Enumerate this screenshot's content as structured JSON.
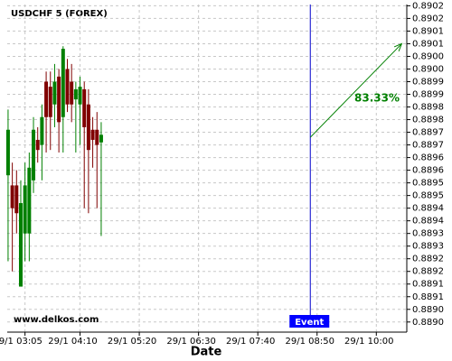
{
  "chart_data": {
    "type": "candlestick",
    "title": "USDCHF 5 (FOREX)",
    "x_label": "Date",
    "watermark": "www.delkos.com",
    "x": [
      165,
      170,
      175,
      180,
      185,
      190,
      195,
      200,
      205,
      210,
      215,
      220,
      225,
      230,
      235,
      240,
      245,
      250,
      255,
      260,
      265,
      270,
      275
    ],
    "open": [
      0.88953,
      0.88949,
      0.88949,
      0.88909,
      0.8893,
      0.8893,
      0.88951,
      0.88967,
      0.88965,
      0.8899,
      0.88988,
      0.88981,
      0.88992,
      0.88976,
      0.88995,
      0.8899,
      0.88983,
      0.88981,
      0.88987,
      0.88981,
      0.88971,
      0.88971,
      0.88966
    ],
    "high": [
      0.88979,
      0.88958,
      0.88955,
      0.88951,
      0.88958,
      0.88962,
      0.88976,
      0.88972,
      0.88981,
      0.88994,
      0.88994,
      0.88997,
      0.88995,
      0.89004,
      0.88999,
      0.88997,
      0.8899,
      0.88992,
      0.8899,
      0.88987,
      0.88976,
      0.88978,
      0.88974
    ],
    "low": [
      0.88919,
      0.88915,
      0.8893,
      0.88909,
      0.88919,
      0.88919,
      0.88946,
      0.88958,
      0.88951,
      0.88962,
      0.88963,
      0.88972,
      0.88962,
      0.88962,
      0.88978,
      0.88974,
      0.88962,
      0.88965,
      0.8894,
      0.88938,
      0.88956,
      0.8894,
      0.88929
    ],
    "close": [
      0.88971,
      0.8894,
      0.88938,
      0.88942,
      0.88949,
      0.88956,
      0.88971,
      0.88963,
      0.88976,
      0.88976,
      0.88976,
      0.8899,
      0.88974,
      0.89003,
      0.88981,
      0.88981,
      0.88987,
      0.88988,
      0.88972,
      0.88963,
      0.88967,
      0.88965,
      0.88969
    ],
    "up_color": "#008000",
    "down_color": "#800000",
    "xlim": [
      164,
      636
    ],
    "xticks": [
      {
        "value": 185,
        "label": "29/1 03:05"
      },
      {
        "value": 250,
        "label": "29/1 04:10"
      },
      {
        "value": 320,
        "label": "29/1 05:20"
      },
      {
        "value": 390,
        "label": "29/1 06:30"
      },
      {
        "value": 460,
        "label": "29/1 07:40"
      },
      {
        "value": 530,
        "label": "29/1 08:50"
      },
      {
        "value": 600,
        "label": "29/1 10:00"
      }
    ],
    "ylim": [
      0.88891,
      0.890205
    ],
    "yticks": [
      {
        "value": 0.8902,
        "label": "0.8902"
      },
      {
        "value": 0.89015,
        "label": "0.8902"
      },
      {
        "value": 0.8901,
        "label": "0.8901"
      },
      {
        "value": 0.89005,
        "label": "0.8901"
      },
      {
        "value": 0.89,
        "label": "0.8900"
      },
      {
        "value": 0.88995,
        "label": "0.8900"
      },
      {
        "value": 0.8899,
        "label": "0.8899"
      },
      {
        "value": 0.88985,
        "label": "0.8899"
      },
      {
        "value": 0.8898,
        "label": "0.8898"
      },
      {
        "value": 0.88975,
        "label": "0.8898"
      },
      {
        "value": 0.8897,
        "label": "0.8897"
      },
      {
        "value": 0.88965,
        "label": "0.8897"
      },
      {
        "value": 0.8896,
        "label": "0.8896"
      },
      {
        "value": 0.88955,
        "label": "0.8896"
      },
      {
        "value": 0.8895,
        "label": "0.8895"
      },
      {
        "value": 0.88945,
        "label": "0.8895"
      },
      {
        "value": 0.8894,
        "label": "0.8894"
      },
      {
        "value": 0.88935,
        "label": "0.8894"
      },
      {
        "value": 0.8893,
        "label": "0.8893"
      },
      {
        "value": 0.88925,
        "label": "0.8893"
      },
      {
        "value": 0.8892,
        "label": "0.8892"
      },
      {
        "value": 0.88915,
        "label": "0.8892"
      },
      {
        "value": 0.8891,
        "label": "0.8891"
      },
      {
        "value": 0.88905,
        "label": "0.8891"
      },
      {
        "value": 0.889,
        "label": "0.8890"
      },
      {
        "value": 0.88895,
        "label": "0.8890"
      }
    ],
    "grid": true,
    "event": {
      "label": "Event",
      "x": 522,
      "color": "#0000cc"
    },
    "forecast": {
      "label": "83.33%",
      "x": [
        522,
        630
      ],
      "y": [
        0.88968,
        0.89005
      ],
      "color": "#008000"
    }
  }
}
